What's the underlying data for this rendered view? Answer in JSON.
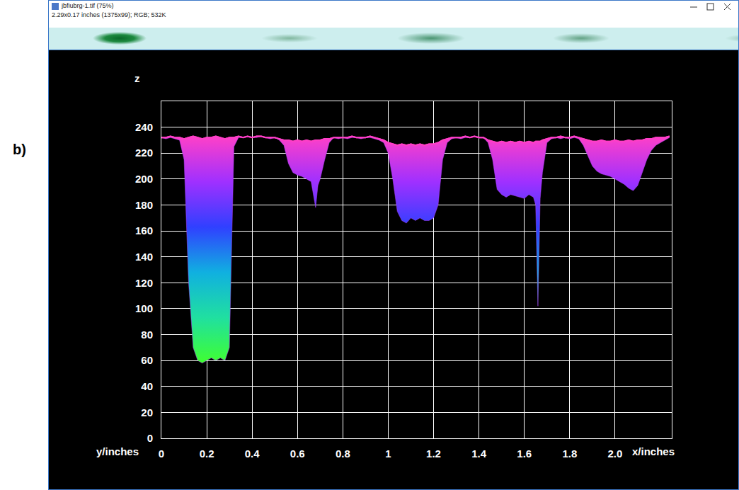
{
  "panel_label": "b)",
  "window": {
    "title": "jbfiubrg-1.tif (75%)",
    "info": "2.29x0.17 inches (1375x99); RGB; 532K"
  },
  "chart_data": {
    "type": "area",
    "xlabel": "x/inches",
    "ylabel": "z",
    "annotations": [
      "y/inches"
    ],
    "x": [
      0,
      0.02,
      0.04,
      0.06,
      0.08,
      0.1,
      0.12,
      0.14,
      0.16,
      0.18,
      0.2,
      0.22,
      0.24,
      0.26,
      0.28,
      0.3,
      0.31,
      0.32,
      0.34,
      0.36,
      0.38,
      0.4,
      0.42,
      0.44,
      0.46,
      0.48,
      0.5,
      0.52,
      0.54,
      0.56,
      0.58,
      0.6,
      0.62,
      0.64,
      0.66,
      0.68,
      0.69,
      0.7,
      0.72,
      0.74,
      0.76,
      0.78,
      0.8,
      0.82,
      0.84,
      0.86,
      0.88,
      0.9,
      0.92,
      0.94,
      0.96,
      0.98,
      1,
      1.02,
      1.04,
      1.06,
      1.08,
      1.1,
      1.12,
      1.14,
      1.16,
      1.18,
      1.2,
      1.22,
      1.24,
      1.26,
      1.28,
      1.3,
      1.32,
      1.34,
      1.36,
      1.38,
      1.4,
      1.42,
      1.44,
      1.46,
      1.48,
      1.5,
      1.52,
      1.54,
      1.56,
      1.58,
      1.6,
      1.62,
      1.64,
      1.65,
      1.66,
      1.67,
      1.68,
      1.7,
      1.72,
      1.74,
      1.76,
      1.78,
      1.8,
      1.82,
      1.84,
      1.86,
      1.88,
      1.9,
      1.92,
      1.94,
      1.96,
      1.98,
      2,
      2.02,
      2.04,
      2.06,
      2.08,
      2.1,
      2.12,
      2.14,
      2.16,
      2.18,
      2.2,
      2.22,
      2.24
    ],
    "series": [
      {
        "type": "line",
        "color": "#ff3fc8",
        "values": [
          232,
          232,
          233,
          232,
          232,
          231,
          232,
          233,
          232,
          231,
          232,
          232,
          233,
          232,
          231,
          232,
          232,
          232,
          233,
          232,
          233,
          232,
          233,
          233,
          232,
          232,
          232,
          231,
          230,
          230,
          229,
          230,
          229,
          230,
          229,
          230,
          230,
          230,
          231,
          231,
          232,
          232,
          232,
          232,
          233,
          232,
          232,
          232,
          233,
          232,
          231,
          230,
          228,
          227,
          226,
          227,
          226,
          227,
          226,
          227,
          226,
          227,
          227,
          228,
          230,
          231,
          232,
          232,
          232,
          233,
          232,
          233,
          232,
          232,
          230,
          229,
          228,
          229,
          228,
          229,
          228,
          229,
          228,
          229,
          228,
          229,
          229,
          229,
          230,
          231,
          232,
          232,
          233,
          232,
          232,
          233,
          232,
          231,
          230,
          229,
          229,
          230,
          229,
          229,
          230,
          229,
          229,
          230,
          229,
          230,
          230,
          231,
          231,
          232,
          232,
          232,
          233
        ]
      },
      {
        "type": "area",
        "color": "#b040ff",
        "values": [
          232,
          231,
          232,
          231,
          230,
          215,
          120,
          70,
          60,
          58,
          60,
          62,
          60,
          62,
          60,
          70,
          150,
          225,
          232,
          232,
          233,
          232,
          232,
          233,
          232,
          231,
          232,
          230,
          226,
          212,
          205,
          203,
          202,
          200,
          198,
          178,
          195,
          200,
          215,
          228,
          232,
          231,
          232,
          231,
          232,
          232,
          231,
          232,
          232,
          231,
          230,
          228,
          220,
          200,
          175,
          168,
          166,
          170,
          168,
          170,
          168,
          168,
          170,
          180,
          215,
          228,
          231,
          232,
          231,
          232,
          232,
          233,
          232,
          232,
          228,
          215,
          192,
          188,
          186,
          188,
          187,
          186,
          185,
          188,
          186,
          180,
          102,
          185,
          205,
          228,
          231,
          232,
          231,
          232,
          231,
          232,
          231,
          226,
          218,
          210,
          206,
          204,
          203,
          202,
          200,
          198,
          196,
          193,
          191,
          195,
          205,
          215,
          222,
          226,
          228,
          230,
          232
        ]
      }
    ],
    "xlim": [
      0,
      2.25
    ],
    "xticks": [
      0,
      0.2,
      0.4,
      0.6,
      0.8,
      1,
      1.2,
      1.4,
      1.6,
      1.8,
      {
        "value": 2,
        "label": "2.0"
      }
    ],
    "ylim": [
      0,
      260
    ],
    "yticks": [
      0,
      20,
      40,
      60,
      80,
      100,
      120,
      140,
      160,
      180,
      200,
      220,
      240
    ],
    "grid": true
  }
}
